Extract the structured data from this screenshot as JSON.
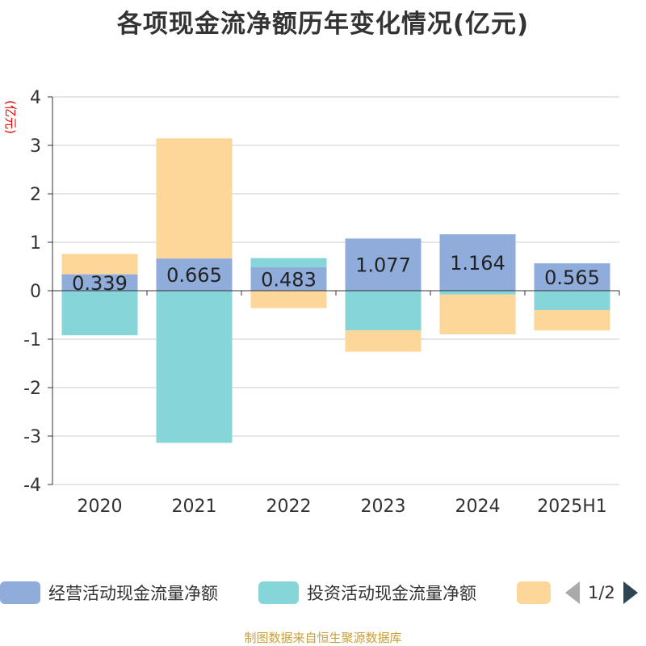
{
  "chart_data": {
    "type": "bar",
    "stacked": true,
    "title": "各项现金流净额历年变化情况(亿元)",
    "ylabel": "(亿元)",
    "categories": [
      "2020",
      "2021",
      "2022",
      "2023",
      "2024",
      "2025H1"
    ],
    "ylim": [
      -4,
      4
    ],
    "yticks": [
      4,
      3,
      2,
      1,
      0,
      -1,
      -2,
      -3,
      -4
    ],
    "grid": true,
    "legend_position": "bottom",
    "series": [
      {
        "name": "经营活动现金流量净额",
        "color": "#8facdb",
        "values": [
          0.339,
          0.665,
          0.483,
          1.077,
          1.164,
          0.565
        ],
        "show_labels": true
      },
      {
        "name": "投资活动现金流量净额",
        "color": "#86d5d8",
        "values": [
          -0.92,
          -3.14,
          0.19,
          -0.82,
          -0.08,
          -0.4
        ],
        "show_labels": false
      },
      {
        "name": "",
        "color": "#fdd799",
        "values": [
          0.42,
          2.48,
          -0.36,
          -0.44,
          -0.82,
          -0.42
        ],
        "show_labels": false
      }
    ]
  },
  "legend": {
    "page_indicator": "1/2"
  },
  "source_note": "制图数据来自恒生聚源数据库"
}
